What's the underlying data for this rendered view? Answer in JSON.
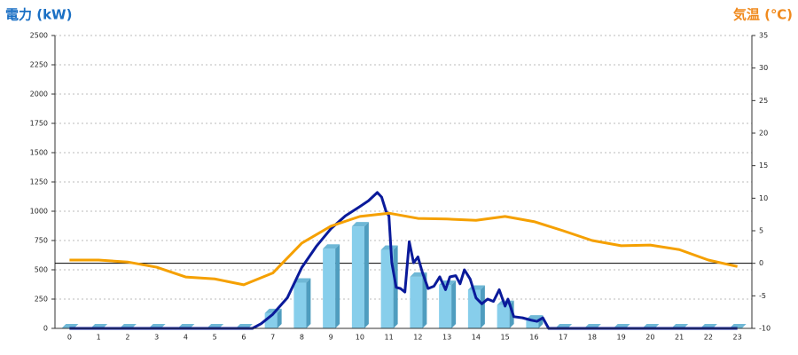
{
  "chart_data": {
    "type": "combo",
    "y_title": "電力 (kW)",
    "y2_title": "気温 (℃)",
    "y_title_color": "#1a6fc4",
    "y2_title_color": "#f08a1e",
    "categories": [
      0,
      1,
      2,
      3,
      4,
      5,
      6,
      7,
      8,
      9,
      10,
      11,
      12,
      13,
      14,
      15,
      16,
      17,
      18,
      19,
      20,
      21,
      22,
      23
    ],
    "ylim": [
      0,
      2500
    ],
    "yticks": [
      0,
      250,
      500,
      750,
      1000,
      1250,
      1500,
      1750,
      2000,
      2250,
      2500
    ],
    "y2lim": [
      -10,
      35
    ],
    "y2ticks": [
      -10,
      -5,
      0,
      5,
      10,
      15,
      20,
      25,
      30,
      35
    ],
    "y2_baseline": 0,
    "grid": true,
    "series": [
      {
        "type": "bar",
        "color": "#87ceeb",
        "values": [
          0,
          0,
          0,
          0,
          0,
          0,
          0,
          130,
          390,
          680,
          870,
          670,
          440,
          370,
          330,
          200,
          75,
          0,
          0,
          0,
          0,
          0,
          0,
          0
        ]
      },
      {
        "type": "line",
        "color": "#0a1a9a",
        "x": [
          0,
          6.3,
          6.6,
          7,
          7.5,
          8,
          8.5,
          9,
          9.5,
          10,
          10.3,
          10.6,
          10.75,
          10.9,
          11,
          11.1,
          11.25,
          11.4,
          11.55,
          11.7,
          11.85,
          12,
          12.15,
          12.35,
          12.55,
          12.75,
          12.95,
          13.1,
          13.3,
          13.45,
          13.6,
          13.8,
          14,
          14.2,
          14.4,
          14.6,
          14.8,
          15,
          15.1,
          15.3,
          15.6,
          15.9,
          16.1,
          16.3,
          16.5,
          23
        ],
        "values": [
          0,
          0,
          40,
          120,
          260,
          520,
          700,
          850,
          960,
          1040,
          1090,
          1160,
          1120,
          1000,
          960,
          560,
          350,
          340,
          310,
          740,
          560,
          610,
          480,
          340,
          360,
          440,
          330,
          440,
          450,
          380,
          500,
          420,
          260,
          210,
          250,
          230,
          330,
          190,
          250,
          100,
          90,
          70,
          60,
          90,
          0,
          0
        ]
      },
      {
        "type": "line",
        "color": "#f5a000",
        "axis": "y2",
        "values": [
          0.5,
          0.5,
          0.2,
          -0.6,
          -2.1,
          -2.4,
          -3.3,
          -1.5,
          3.1,
          5.7,
          7.2,
          7.7,
          6.9,
          6.8,
          6.6,
          7.2,
          6.4,
          5.0,
          3.5,
          2.7,
          2.8,
          2.1,
          0.5,
          -0.5
        ]
      }
    ]
  }
}
